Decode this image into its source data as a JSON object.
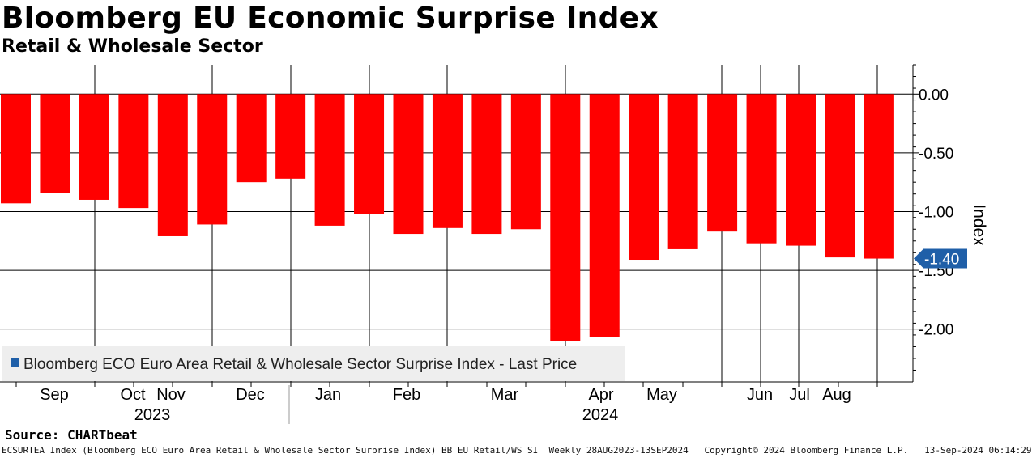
{
  "header": {
    "title": "Bloomberg EU Economic Surprise Index",
    "subtitle": "Retail & Wholesale Sector"
  },
  "colors": {
    "bar": "#ff0000",
    "grid": "#000000",
    "legend_bg": "#eeeeee",
    "legend_marker": "#1f5fa8",
    "last_price_tag": "#1f5fa8"
  },
  "chart_data": {
    "type": "bar",
    "series": [
      {
        "name": "Bloomberg ECO Euro Area Retail & Wholesale Sector Surprise Index - Last Price",
        "values": [
          -0.93,
          -0.84,
          -0.9,
          -0.97,
          -1.21,
          -1.11,
          -0.75,
          -0.72,
          -1.12,
          -1.02,
          -1.19,
          -1.14,
          -1.19,
          -1.15,
          -2.1,
          -2.07,
          -1.41,
          -1.32,
          -1.17,
          -1.27,
          -1.29,
          -1.39,
          -1.4
        ]
      }
    ],
    "ylim": [
      -2.45,
      0.25
    ],
    "yticks": [
      0,
      -0.5,
      -1,
      -1.5,
      -2
    ],
    "ytick_labels": [
      "0.00",
      "-0.50",
      "-1.00",
      "-1.50",
      "-2.00"
    ],
    "ylabel": "Index",
    "xlabel": "",
    "month_labels": [
      "Sep",
      "Oct",
      "Nov",
      "Dec",
      "Jan",
      "Feb",
      "Mar",
      "Apr",
      "May",
      "Jun",
      "Jul",
      "Aug"
    ],
    "year_labels": [
      "2023",
      "2024"
    ],
    "last_price_label": "-1.40",
    "last_price_value": -1.4,
    "legend": {
      "text": "Bloomberg ECO Euro Area Retail & Wholesale Sector Surprise Index - Last Price",
      "position": "bottom-left"
    },
    "grid": true
  },
  "source": "Source: CHARTbeat",
  "footer": "ECSURTEA Index (Bloomberg ECO Euro Area Retail & Wholesale Sector Surprise Index) BB EU Retail/WS SI  Weekly 28AUG2023-13SEP2024   Copyright© 2024 Bloomberg Finance L.P.   13-Sep-2024 06:14:29"
}
